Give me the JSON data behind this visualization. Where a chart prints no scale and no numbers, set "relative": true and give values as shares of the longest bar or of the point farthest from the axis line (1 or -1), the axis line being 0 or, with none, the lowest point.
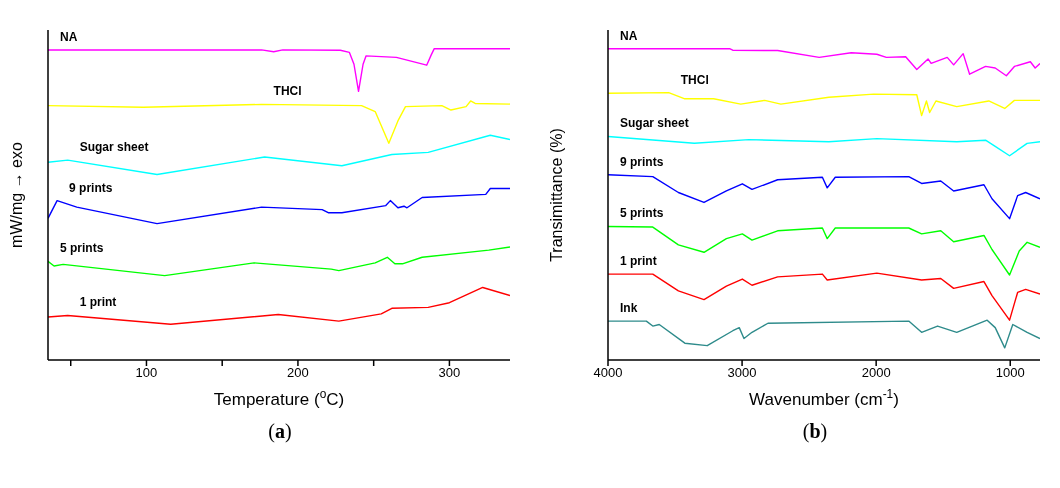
{
  "chart_data": [
    {
      "type": "line",
      "relative": true,
      "xlabel": "Temperature ($^{o}$C)",
      "ylabel": "mW/mg → exo",
      "annotations": [
        "(a)"
      ],
      "marker": "none",
      "xlim": [
        35,
        340
      ],
      "xticks": [
        {
          "value": 50,
          "label": null
        },
        100,
        {
          "value": 150,
          "label": null
        },
        200,
        {
          "value": 250,
          "label": null
        },
        300
      ],
      "series": [
        {
          "name": "NA",
          "color": "#ff00ff",
          "x": [
            35,
            176,
            184,
            190,
            228,
            234,
            237,
            240,
            243,
            245,
            265,
            285,
            288,
            290,
            340
          ],
          "values": [
            0.996,
            0.996,
            0.99,
            0.996,
            0.995,
            0.988,
            0.95,
            0.863,
            0.95,
            0.977,
            0.972,
            0.947,
            0.98,
            1.0,
            1.0
          ]
        },
        {
          "name": "THCl",
          "color": "#ffff00",
          "x": [
            35,
            98,
            176,
            242,
            251,
            260,
            266,
            271,
            295,
            301,
            311,
            314,
            317,
            340
          ],
          "values": [
            0.817,
            0.812,
            0.821,
            0.817,
            0.798,
            0.696,
            0.768,
            0.814,
            0.817,
            0.803,
            0.814,
            0.832,
            0.824,
            0.822
          ]
        },
        {
          "name": "Sugar sheet",
          "color": "#00ffff",
          "x": [
            35,
            48,
            107,
            178,
            229,
            262,
            286,
            327,
            340
          ],
          "values": [
            0.635,
            0.642,
            0.596,
            0.652,
            0.624,
            0.66,
            0.667,
            0.722,
            0.708
          ]
        },
        {
          "name": "9 prints",
          "color": "#0000ff",
          "x": [
            35,
            41,
            54,
            107,
            176,
            216,
            220,
            229,
            258,
            261,
            266,
            270,
            272,
            282,
            324,
            327,
            340
          ],
          "values": [
            0.455,
            0.512,
            0.491,
            0.438,
            0.491,
            0.483,
            0.473,
            0.473,
            0.496,
            0.512,
            0.489,
            0.494,
            0.489,
            0.522,
            0.532,
            0.551,
            0.551
          ]
        },
        {
          "name": "5 prints",
          "color": "#00ff00",
          "x": [
            35,
            39,
            45,
            112,
            171,
            222,
            227,
            251,
            259,
            264,
            269,
            282,
            326,
            340
          ],
          "values": [
            0.317,
            0.302,
            0.307,
            0.271,
            0.312,
            0.292,
            0.287,
            0.312,
            0.33,
            0.309,
            0.309,
            0.33,
            0.353,
            0.363
          ]
        },
        {
          "name": "1 print",
          "color": "#ff0000",
          "x": [
            35,
            48,
            116,
            187,
            227,
            255,
            262,
            286,
            300,
            322,
            340
          ],
          "values": [
            0.138,
            0.143,
            0.115,
            0.146,
            0.125,
            0.148,
            0.166,
            0.169,
            0.184,
            0.233,
            0.207
          ]
        }
      ]
    },
    {
      "type": "line",
      "relative": true,
      "xlabel": "Wavenumber (cm$^{-1}$)",
      "ylabel": "Transimittance (%)",
      "annotations": [
        "(b)"
      ],
      "marker": "none",
      "xlim": [
        4000,
        778
      ],
      "xticks": [
        4000,
        3000,
        2000,
        1000
      ],
      "series": [
        {
          "name": "NA",
          "color": "#ff00ff",
          "x": [
            4000,
            3093,
            3070,
            2735,
            2425,
            2186,
            1995,
            1924,
            1780,
            1697,
            1613,
            1590,
            1470,
            1422,
            1351,
            1303,
            1184,
            1112,
            1029,
            969,
            850,
            814,
            778
          ],
          "values": [
            1.0,
            1.0,
            0.995,
            0.994,
            0.972,
            0.987,
            0.982,
            0.972,
            0.974,
            0.933,
            0.967,
            0.953,
            0.972,
            0.948,
            0.984,
            0.918,
            0.943,
            0.938,
            0.913,
            0.943,
            0.958,
            0.938,
            0.952
          ]
        },
        {
          "name": "THCl",
          "color": "#ffff00",
          "x": [
            4000,
            3547,
            3427,
            3212,
            3010,
            2831,
            2711,
            2353,
            2019,
            1697,
            1661,
            1625,
            1601,
            1554,
            1399,
            1160,
            1041,
            969,
            778
          ],
          "values": [
            0.857,
            0.859,
            0.839,
            0.839,
            0.822,
            0.834,
            0.822,
            0.844,
            0.854,
            0.852,
            0.785,
            0.832,
            0.795,
            0.832,
            0.814,
            0.832,
            0.808,
            0.834,
            0.834
          ]
        },
        {
          "name": "Sugar sheet",
          "color": "#00ffff",
          "x": [
            4000,
            3356,
            2950,
            2353,
            1995,
            1399,
            1184,
            1112,
            1005,
            874,
            778
          ],
          "values": [
            0.718,
            0.696,
            0.708,
            0.701,
            0.711,
            0.701,
            0.706,
            0.686,
            0.656,
            0.696,
            0.701
          ]
        },
        {
          "name": "9 prints",
          "color": "#0000ff",
          "x": [
            4000,
            3666,
            3475,
            3284,
            3117,
            2998,
            2926,
            2735,
            2401,
            2365,
            2305,
            1757,
            1661,
            1518,
            1422,
            1196,
            1136,
            1005,
            945,
            885,
            778
          ],
          "values": [
            0.595,
            0.589,
            0.538,
            0.506,
            0.543,
            0.566,
            0.548,
            0.579,
            0.587,
            0.553,
            0.587,
            0.589,
            0.567,
            0.575,
            0.543,
            0.563,
            0.518,
            0.454,
            0.528,
            0.538,
            0.518
          ]
        },
        {
          "name": "5 prints",
          "color": "#00ff00",
          "x": [
            4000,
            3666,
            3475,
            3284,
            3117,
            2998,
            2926,
            2735,
            2401,
            2365,
            2305,
            1757,
            1661,
            1518,
            1422,
            1196,
            1136,
            1005,
            933,
            874,
            778
          ],
          "values": [
            0.429,
            0.427,
            0.37,
            0.346,
            0.39,
            0.405,
            0.385,
            0.415,
            0.424,
            0.39,
            0.424,
            0.424,
            0.405,
            0.415,
            0.38,
            0.4,
            0.355,
            0.273,
            0.35,
            0.378,
            0.362
          ]
        },
        {
          "name": "1 print",
          "color": "#ff0000",
          "x": [
            4000,
            3666,
            3475,
            3284,
            3117,
            2998,
            2926,
            2735,
            2401,
            2365,
            1995,
            1661,
            1518,
            1422,
            1196,
            1136,
            1005,
            945,
            885,
            778
          ],
          "values": [
            0.276,
            0.276,
            0.222,
            0.194,
            0.237,
            0.26,
            0.24,
            0.267,
            0.276,
            0.257,
            0.279,
            0.257,
            0.262,
            0.23,
            0.252,
            0.207,
            0.128,
            0.217,
            0.227,
            0.212
          ]
        },
        {
          "name": "Ink",
          "color": "#2e8b8b",
          "x": [
            4000,
            3714,
            3666,
            3618,
            3427,
            3260,
            3069,
            3021,
            2986,
            2926,
            2807,
            1757,
            1661,
            1542,
            1399,
            1172,
            1112,
            1041,
            981,
            874,
            778
          ],
          "values": [
            0.125,
            0.125,
            0.109,
            0.114,
            0.054,
            0.046,
            0.094,
            0.104,
            0.069,
            0.089,
            0.118,
            0.125,
            0.089,
            0.109,
            0.089,
            0.128,
            0.104,
            0.039,
            0.114,
            0.089,
            0.069
          ]
        }
      ]
    }
  ]
}
